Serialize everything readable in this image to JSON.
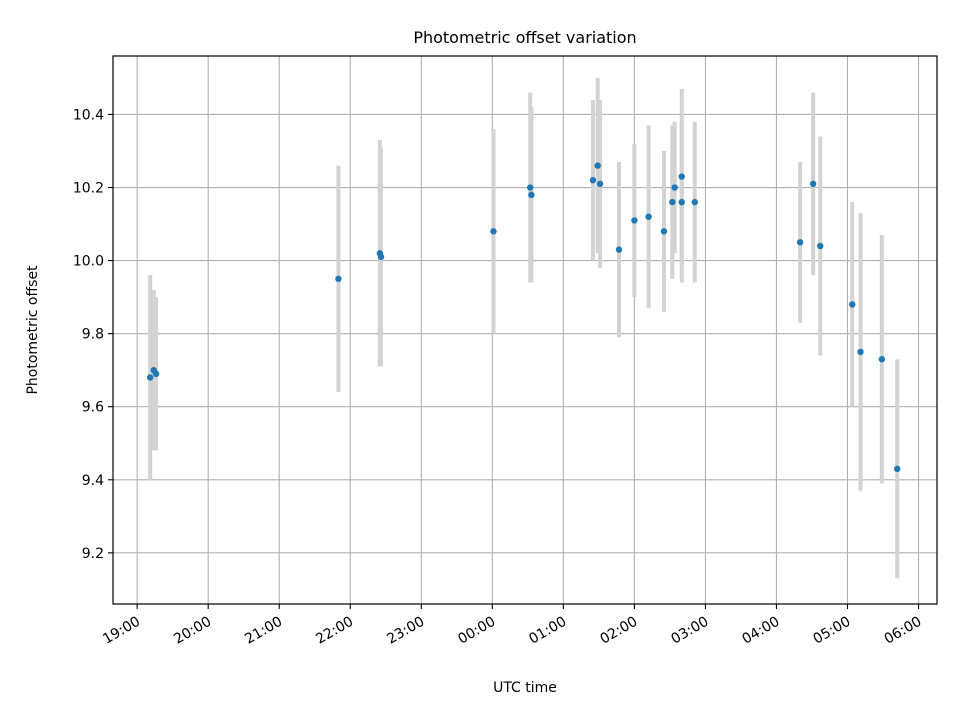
{
  "chart_data": {
    "type": "scatter",
    "title": "Photometric offset variation",
    "xlabel": "UTC time",
    "ylabel": "Photometric offset",
    "grid": true,
    "x_ticks": [
      "19:00",
      "20:00",
      "21:00",
      "22:00",
      "23:00",
      "00:00",
      "01:00",
      "02:00",
      "03:00",
      "04:00",
      "05:00",
      "06:00"
    ],
    "x_tick_hours": [
      19,
      20,
      21,
      22,
      23,
      24,
      25,
      26,
      27,
      28,
      29,
      30
    ],
    "xlim_hours": [
      18.66,
      30.26
    ],
    "y_ticks": [
      "9.2",
      "9.4",
      "9.6",
      "9.8",
      "10.0",
      "10.2",
      "10.4"
    ],
    "y_tick_values": [
      9.2,
      9.4,
      9.6,
      9.8,
      10.0,
      10.2,
      10.4
    ],
    "ylim": [
      9.06,
      10.56
    ],
    "colors": {
      "marker": "#1f77b4",
      "errorbar": "#d3d3d3",
      "grid": "#b0b0b0"
    },
    "points": [
      {
        "t": "19:11",
        "y": 9.68,
        "err": 0.28
      },
      {
        "t": "19:14",
        "y": 9.7,
        "err": 0.22
      },
      {
        "t": "19:16",
        "y": 9.69,
        "err": 0.21
      },
      {
        "t": "21:50",
        "y": 9.95,
        "err": 0.31
      },
      {
        "t": "22:25",
        "y": 10.02,
        "err": 0.31
      },
      {
        "t": "22:26",
        "y": 10.01,
        "err": 0.3
      },
      {
        "t": "00:01",
        "y": 10.08,
        "err": 0.28
      },
      {
        "t": "00:32",
        "y": 10.2,
        "err": 0.26
      },
      {
        "t": "00:33",
        "y": 10.18,
        "err": 0.24
      },
      {
        "t": "01:25",
        "y": 10.22,
        "err": 0.22
      },
      {
        "t": "01:29",
        "y": 10.26,
        "err": 0.24
      },
      {
        "t": "01:31",
        "y": 10.21,
        "err": 0.23
      },
      {
        "t": "01:47",
        "y": 10.03,
        "err": 0.24
      },
      {
        "t": "02:00",
        "y": 10.11,
        "err": 0.21
      },
      {
        "t": "02:12",
        "y": 10.12,
        "err": 0.25
      },
      {
        "t": "02:25",
        "y": 10.08,
        "err": 0.22
      },
      {
        "t": "02:32",
        "y": 10.16,
        "err": 0.21
      },
      {
        "t": "02:34",
        "y": 10.2,
        "err": 0.18
      },
      {
        "t": "02:40",
        "y": 10.16,
        "err": 0.22
      },
      {
        "t": "02:40",
        "y": 10.23,
        "err": 0.24
      },
      {
        "t": "02:51",
        "y": 10.16,
        "err": 0.22
      },
      {
        "t": "04:20",
        "y": 10.05,
        "err": 0.22
      },
      {
        "t": "04:31",
        "y": 10.21,
        "err": 0.25
      },
      {
        "t": "04:37",
        "y": 10.04,
        "err": 0.3
      },
      {
        "t": "05:04",
        "y": 9.88,
        "err": 0.28
      },
      {
        "t": "05:11",
        "y": 9.75,
        "err": 0.38
      },
      {
        "t": "05:29",
        "y": 9.73,
        "err": 0.34
      },
      {
        "t": "05:42",
        "y": 9.43,
        "err": 0.3
      }
    ]
  }
}
